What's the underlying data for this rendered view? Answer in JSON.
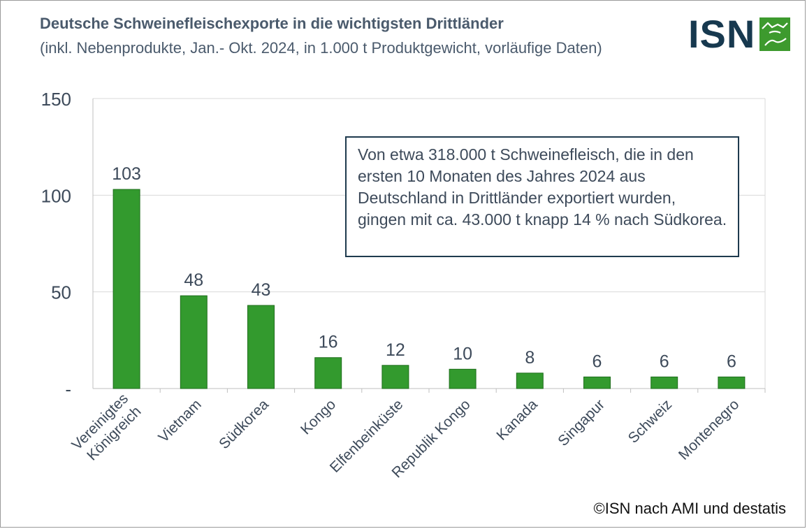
{
  "title": "Deutsche Schweinefleischexporte in die wichtigsten Drittländer",
  "subtitle": "(inkl. Nebenprodukte, Jan.- Okt. 2024, in 1.000 t Produktgewicht, vorläufige Daten)",
  "logo": {
    "text": "ISN",
    "brand_dark": "#17394f",
    "brand_green": "#3d9a2e"
  },
  "callout": "Von etwa 318.000 t Schweinefleisch, die in den ersten 10 Monaten des Jahres 2024 aus Deutschland in Drittländer exportiert wurden, gingen mit ca. 43.000 t knapp 14 % nach Südkorea.",
  "source": "©ISN nach AMI und destatis",
  "chart_data": {
    "type": "bar",
    "categories": [
      "Vereinigtes Königreich",
      "Vietnam",
      "Südkorea",
      "Kongo",
      "Elfenbeinküste",
      "Republik Kongo",
      "Kanada",
      "Singapur",
      "Schweiz",
      "Montenegro"
    ],
    "values": [
      103,
      48,
      43,
      16,
      12,
      10,
      8,
      6,
      6,
      6
    ],
    "data_labels": [
      "103",
      "48",
      "43",
      "16",
      "12",
      "10",
      "8",
      "6",
      "6",
      "6"
    ],
    "ylim": [
      0,
      150
    ],
    "yticks": [
      0,
      50,
      100,
      150
    ],
    "ytick_labels": [
      "-",
      "50",
      "100",
      "150"
    ],
    "grid": true,
    "bar_color": "#339a2e",
    "bar_edge_color": "#1f6e1c"
  }
}
